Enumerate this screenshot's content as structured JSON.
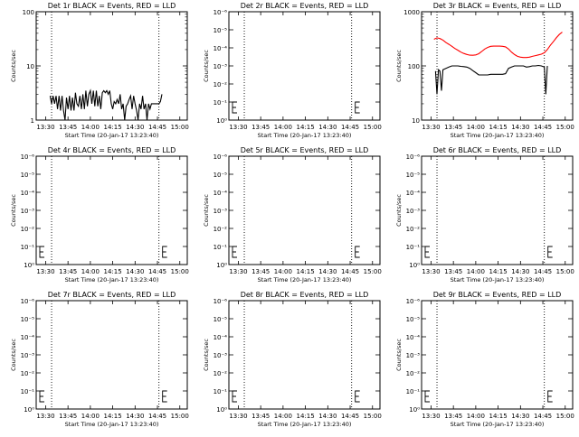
{
  "page": {
    "background": "#ffffff",
    "event_color": "#000000",
    "lld_color": "#ff0000"
  },
  "chart_data": [
    {
      "type": "line",
      "title": "Det 1r BLACK = Events, RED = LLD",
      "ylabel": "Counts/sec",
      "xlabel": "Start Time (20-Jan-17 13:23:40)",
      "x_ticks": [
        "13:30",
        "13:45",
        "14:00",
        "14:15",
        "14:30",
        "14:45",
        "15:00"
      ],
      "y_ticks": [
        "1",
        "10",
        "100"
      ],
      "y_scale": "log",
      "ylim": [
        1,
        100
      ],
      "xlim": [
        "13:23:40",
        "15:05:00"
      ],
      "marker_times": [
        "13:34",
        "14:46"
      ],
      "series": [
        {
          "color": "#000000",
          "points": [
            [
              "13:33",
              2.8
            ],
            [
              "13:34",
              2.0
            ],
            [
              "13:35",
              2.8
            ],
            [
              "13:36",
              2.0
            ],
            [
              "13:37",
              2.8
            ],
            [
              "13:38",
              1.6
            ],
            [
              "13:39",
              2.8
            ],
            [
              "13:40",
              1.5
            ],
            [
              "13:41",
              2.8
            ],
            [
              "13:42",
              1.5
            ],
            [
              "13:43",
              1.0
            ],
            [
              "13:44",
              2.6
            ],
            [
              "13:45",
              1.6
            ],
            [
              "13:46",
              2.8
            ],
            [
              "13:47",
              1.5
            ],
            [
              "13:48",
              2.6
            ],
            [
              "13:49",
              1.5
            ],
            [
              "13:50",
              3.2
            ],
            [
              "13:51",
              2.0
            ],
            [
              "13:52",
              1.8
            ],
            [
              "13:53",
              2.8
            ],
            [
              "13:54",
              1.6
            ],
            [
              "13:55",
              3.0
            ],
            [
              "13:56",
              1.6
            ],
            [
              "13:57",
              3.5
            ],
            [
              "13:58",
              1.8
            ],
            [
              "13:59",
              3.0
            ],
            [
              "14:00",
              3.5
            ],
            [
              "14:01",
              2.0
            ],
            [
              "14:02",
              3.5
            ],
            [
              "14:03",
              1.8
            ],
            [
              "14:04",
              3.5
            ],
            [
              "14:05",
              1.8
            ],
            [
              "14:06",
              2.8
            ],
            [
              "14:07",
              1.6
            ],
            [
              "14:08",
              3.2
            ],
            [
              "14:09",
              3.5
            ],
            [
              "14:10",
              3.2
            ],
            [
              "14:11",
              3.5
            ],
            [
              "14:12",
              3.0
            ],
            [
              "14:13",
              3.5
            ],
            [
              "14:14",
              2.0
            ],
            [
              "14:15",
              1.6
            ],
            [
              "14:16",
              2.2
            ],
            [
              "14:17",
              2.0
            ],
            [
              "14:18",
              2.4
            ],
            [
              "14:19",
              2.0
            ],
            [
              "14:20",
              3.0
            ],
            [
              "14:21",
              1.6
            ],
            [
              "14:22",
              2.0
            ],
            [
              "14:23",
              1.0
            ],
            [
              "14:24",
              1.8
            ],
            [
              "14:25",
              2.0
            ],
            [
              "14:26",
              2.4
            ],
            [
              "14:27",
              2.8
            ],
            [
              "14:28",
              1.6
            ],
            [
              "14:29",
              2.8
            ],
            [
              "14:30",
              2.0
            ],
            [
              "14:31",
              1.5
            ],
            [
              "14:32",
              1.0
            ],
            [
              "14:33",
              2.0
            ],
            [
              "14:34",
              1.6
            ],
            [
              "14:35",
              2.8
            ],
            [
              "14:36",
              1.6
            ],
            [
              "14:37",
              2.0
            ],
            [
              "14:38",
              1.0
            ],
            [
              "14:39",
              2.0
            ],
            [
              "14:40",
              1.6
            ],
            [
              "14:41",
              2.0
            ],
            [
              "14:42",
              2.0
            ],
            [
              "14:43",
              2.0
            ],
            [
              "14:44",
              2.0
            ],
            [
              "14:45",
              2.0
            ],
            [
              "14:46",
              2.0
            ],
            [
              "14:47",
              2.2
            ],
            [
              "14:48",
              3.0
            ]
          ]
        }
      ]
    },
    {
      "type": "line",
      "title": "Det 2r BLACK = Events, RED = LLD",
      "ylabel": "Counts/sec",
      "xlabel": "Start Time (20-Jan-17 13:23:40)",
      "x_ticks": [
        "13:30",
        "13:45",
        "14:00",
        "14:15",
        "14:30",
        "14:45",
        "15:00"
      ],
      "y_ticks": [
        "10⁰",
        "10⁻¹",
        "10⁻²",
        "10⁻³",
        "10⁻⁴",
        "10⁻⁵",
        "10⁻⁶"
      ],
      "xlim": [
        "13:23:40",
        "15:05:00"
      ],
      "marker_times": [
        "13:34",
        "14:46"
      ],
      "series": []
    },
    {
      "type": "line",
      "title": "Det 3r BLACK = Events, RED = LLD",
      "ylabel": "Counts/sec",
      "xlabel": "Start Time (20-Jan-17 13:23:40)",
      "x_ticks": [
        "13:30",
        "13:45",
        "14:00",
        "14:15",
        "14:30",
        "14:45",
        "15:00"
      ],
      "y_ticks": [
        "10",
        "100",
        "1000"
      ],
      "y_scale": "log",
      "ylim": [
        10,
        1000
      ],
      "xlim": [
        "13:23:40",
        "15:05:00"
      ],
      "marker_times": [
        "13:34",
        "14:46"
      ],
      "series": [
        {
          "color": "#000000",
          "points": [
            [
              "13:33",
              80
            ],
            [
              "13:34",
              30
            ],
            [
              "13:35",
              85
            ],
            [
              "13:36",
              80
            ],
            [
              "13:37",
              35
            ],
            [
              "13:38",
              85
            ],
            [
              "13:40",
              90
            ],
            [
              "13:42",
              95
            ],
            [
              "13:44",
              100
            ],
            [
              "13:46",
              100
            ],
            [
              "13:48",
              100
            ],
            [
              "13:50",
              98
            ],
            [
              "13:52",
              97
            ],
            [
              "13:54",
              95
            ],
            [
              "13:56",
              90
            ],
            [
              "13:58",
              82
            ],
            [
              "14:00",
              75
            ],
            [
              "14:02",
              68
            ],
            [
              "14:04",
              68
            ],
            [
              "14:06",
              68
            ],
            [
              "14:08",
              68
            ],
            [
              "14:10",
              70
            ],
            [
              "14:12",
              70
            ],
            [
              "14:14",
              70
            ],
            [
              "14:16",
              70
            ],
            [
              "14:18",
              70
            ],
            [
              "14:20",
              72
            ],
            [
              "14:22",
              90
            ],
            [
              "14:24",
              95
            ],
            [
              "14:26",
              100
            ],
            [
              "14:28",
              100
            ],
            [
              "14:30",
              100
            ],
            [
              "14:32",
              100
            ],
            [
              "14:34",
              95
            ],
            [
              "14:36",
              97
            ],
            [
              "14:38",
              100
            ],
            [
              "14:40",
              100
            ],
            [
              "14:42",
              102
            ],
            [
              "14:44",
              100
            ],
            [
              "14:46",
              95
            ],
            [
              "14:47",
              30
            ],
            [
              "14:48",
              100
            ]
          ]
        },
        {
          "color": "#ff0000",
          "points": [
            [
              "13:32",
              310
            ],
            [
              "13:34",
              330
            ],
            [
              "13:36",
              320
            ],
            [
              "13:38",
              300
            ],
            [
              "13:40",
              270
            ],
            [
              "13:42",
              250
            ],
            [
              "13:44",
              230
            ],
            [
              "13:46",
              210
            ],
            [
              "13:48",
              195
            ],
            [
              "13:50",
              180
            ],
            [
              "13:52",
              170
            ],
            [
              "13:54",
              163
            ],
            [
              "13:56",
              158
            ],
            [
              "13:58",
              157
            ],
            [
              "14:00",
              160
            ],
            [
              "14:02",
              168
            ],
            [
              "14:04",
              185
            ],
            [
              "14:06",
              205
            ],
            [
              "14:08",
              220
            ],
            [
              "14:10",
              230
            ],
            [
              "14:12",
              232
            ],
            [
              "14:14",
              232
            ],
            [
              "14:16",
              232
            ],
            [
              "14:18",
              230
            ],
            [
              "14:20",
              225
            ],
            [
              "14:22",
              205
            ],
            [
              "14:24",
              180
            ],
            [
              "14:26",
              162
            ],
            [
              "14:28",
              150
            ],
            [
              "14:30",
              145
            ],
            [
              "14:32",
              143
            ],
            [
              "14:34",
              143
            ],
            [
              "14:36",
              145
            ],
            [
              "14:38",
              150
            ],
            [
              "14:40",
              155
            ],
            [
              "14:42",
              160
            ],
            [
              "14:44",
              165
            ],
            [
              "14:46",
              175
            ],
            [
              "14:48",
              200
            ],
            [
              "14:50",
              240
            ],
            [
              "14:52",
              280
            ],
            [
              "14:54",
              330
            ],
            [
              "14:56",
              380
            ],
            [
              "14:58",
              420
            ]
          ]
        }
      ]
    },
    {
      "type": "line",
      "title": "Det 4r BLACK = Events, RED = LLD",
      "ylabel": "Counts/sec",
      "xlabel": "Start Time (20-Jan-17 13:23:40)",
      "x_ticks": [
        "13:30",
        "13:45",
        "14:00",
        "14:15",
        "14:30",
        "14:45",
        "15:00"
      ],
      "y_ticks": [
        "10⁰",
        "10⁻¹",
        "10⁻²",
        "10⁻³",
        "10⁻⁴",
        "10⁻⁵",
        "10⁻⁶"
      ],
      "xlim": [
        "13:23:40",
        "15:05:00"
      ],
      "marker_times": [
        "13:34",
        "14:46"
      ],
      "series": []
    },
    {
      "type": "line",
      "title": "Det 5r BLACK = Events, RED = LLD",
      "ylabel": "Counts/sec",
      "xlabel": "Start Time (20-Jan-17 13:23:40)",
      "x_ticks": [
        "13:30",
        "13:45",
        "14:00",
        "14:15",
        "14:30",
        "14:45",
        "15:00"
      ],
      "y_ticks": [
        "10⁰",
        "10⁻¹",
        "10⁻²",
        "10⁻³",
        "10⁻⁴",
        "10⁻⁵",
        "10⁻⁶"
      ],
      "xlim": [
        "13:23:40",
        "15:05:00"
      ],
      "marker_times": [
        "13:34",
        "14:46"
      ],
      "series": []
    },
    {
      "type": "line",
      "title": "Det 6r BLACK = Events, RED = LLD",
      "ylabel": "Counts/sec",
      "xlabel": "Start Time (20-Jan-17 13:23:40)",
      "x_ticks": [
        "13:30",
        "13:45",
        "14:00",
        "14:15",
        "14:30",
        "14:45",
        "15:00"
      ],
      "y_ticks": [
        "10⁰",
        "10⁻¹",
        "10⁻²",
        "10⁻³",
        "10⁻⁴",
        "10⁻⁵",
        "10⁻⁶"
      ],
      "xlim": [
        "13:23:40",
        "15:05:00"
      ],
      "marker_times": [
        "13:34",
        "14:46"
      ],
      "series": []
    },
    {
      "type": "line",
      "title": "Det 7r BLACK = Events, RED = LLD",
      "ylabel": "Counts/sec",
      "xlabel": "Start Time (20-Jan-17 13:23:40)",
      "x_ticks": [
        "13:30",
        "13:45",
        "14:00",
        "14:15",
        "14:30",
        "14:45",
        "15:00"
      ],
      "y_ticks": [
        "10⁰",
        "10⁻¹",
        "10⁻²",
        "10⁻³",
        "10⁻⁴",
        "10⁻⁵",
        "10⁻⁶"
      ],
      "xlim": [
        "13:23:40",
        "15:05:00"
      ],
      "marker_times": [
        "13:34",
        "14:46"
      ],
      "series": []
    },
    {
      "type": "line",
      "title": "Det 8r BLACK = Events, RED = LLD",
      "ylabel": "Counts/sec",
      "xlabel": "Start Time (20-Jan-17 13:23:40)",
      "x_ticks": [
        "13:30",
        "13:45",
        "14:00",
        "14:15",
        "14:30",
        "14:45",
        "15:00"
      ],
      "y_ticks": [
        "10⁰",
        "10⁻¹",
        "10⁻²",
        "10⁻³",
        "10⁻⁴",
        "10⁻⁵",
        "10⁻⁶"
      ],
      "xlim": [
        "13:23:40",
        "15:05:00"
      ],
      "marker_times": [
        "13:34",
        "14:46"
      ],
      "series": []
    },
    {
      "type": "line",
      "title": "Det 9r BLACK = Events, RED = LLD",
      "ylabel": "Counts/sec",
      "xlabel": "Start Time (20-Jan-17 13:23:40)",
      "x_ticks": [
        "13:30",
        "13:45",
        "14:00",
        "14:15",
        "14:30",
        "14:45",
        "15:00"
      ],
      "y_ticks": [
        "10⁰",
        "10⁻¹",
        "10⁻²",
        "10⁻³",
        "10⁻⁴",
        "10⁻⁵",
        "10⁻⁶"
      ],
      "xlim": [
        "13:23:40",
        "15:05:00"
      ],
      "marker_times": [
        "13:34",
        "14:46"
      ],
      "series": []
    }
  ]
}
